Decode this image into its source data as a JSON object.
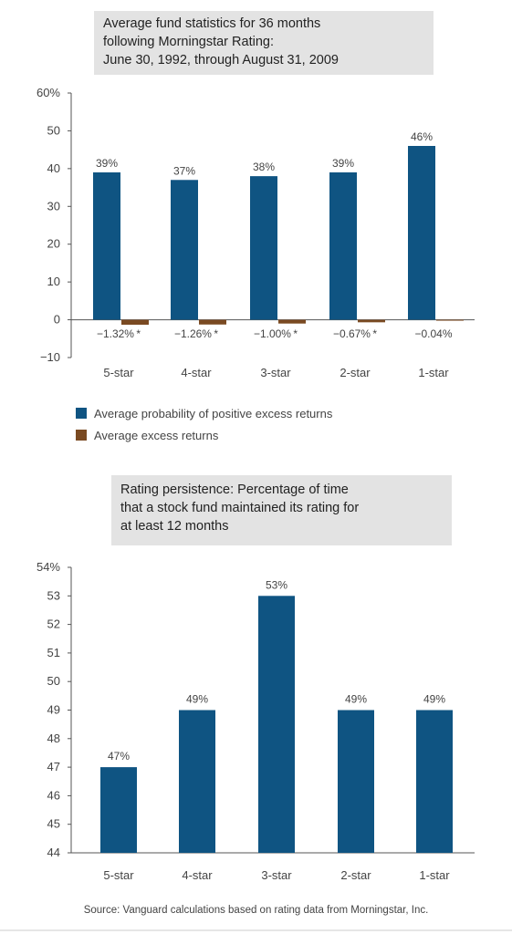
{
  "chart_data": [
    {
      "type": "bar",
      "title": [
        "Average fund statistics for 36 months",
        "following Morningstar Rating:",
        "June 30, 1992, through August 31, 2009"
      ],
      "categories": [
        "5-star",
        "4-star",
        "3-star",
        "2-star",
        "1-star"
      ],
      "series": [
        {
          "name": "Average probability of positive excess returns",
          "color": "#0f5482",
          "values": [
            39,
            37,
            38,
            39,
            46
          ],
          "labels": [
            "39%",
            "37%",
            "38%",
            "39%",
            "46%"
          ]
        },
        {
          "name": "Average excess returns",
          "color": "#7a4a22",
          "values": [
            -1.32,
            -1.26,
            -1.0,
            -0.67,
            -0.04
          ],
          "labels": [
            "−1.32% *",
            "−1.26% *",
            "−1.00% *",
            "−0.67% *",
            "−0.04%"
          ]
        }
      ],
      "yticks": [
        "60%",
        "50",
        "40",
        "30",
        "20",
        "10",
        "0",
        "−10"
      ],
      "ylim": [
        -10,
        60
      ],
      "grid": false,
      "legend": "bottom"
    },
    {
      "type": "bar",
      "title": [
        "Rating persistence: Percentage of time",
        "that a stock fund maintained its rating for",
        "at least 12 months"
      ],
      "categories": [
        "5-star",
        "4-star",
        "3-star",
        "2-star",
        "1-star"
      ],
      "series": [
        {
          "color": "#0f5482",
          "values": [
            47,
            49,
            53,
            49,
            49
          ],
          "labels": [
            "47%",
            "49%",
            "53%",
            "49%",
            "49%"
          ]
        }
      ],
      "yticks": [
        "54%",
        "53",
        "52",
        "51",
        "50",
        "49",
        "48",
        "47",
        "46",
        "45",
        "44"
      ],
      "ylim": [
        44,
        54
      ],
      "grid": false
    }
  ],
  "source": "Source: Vanguard calculations based on rating data from Morningstar, Inc."
}
